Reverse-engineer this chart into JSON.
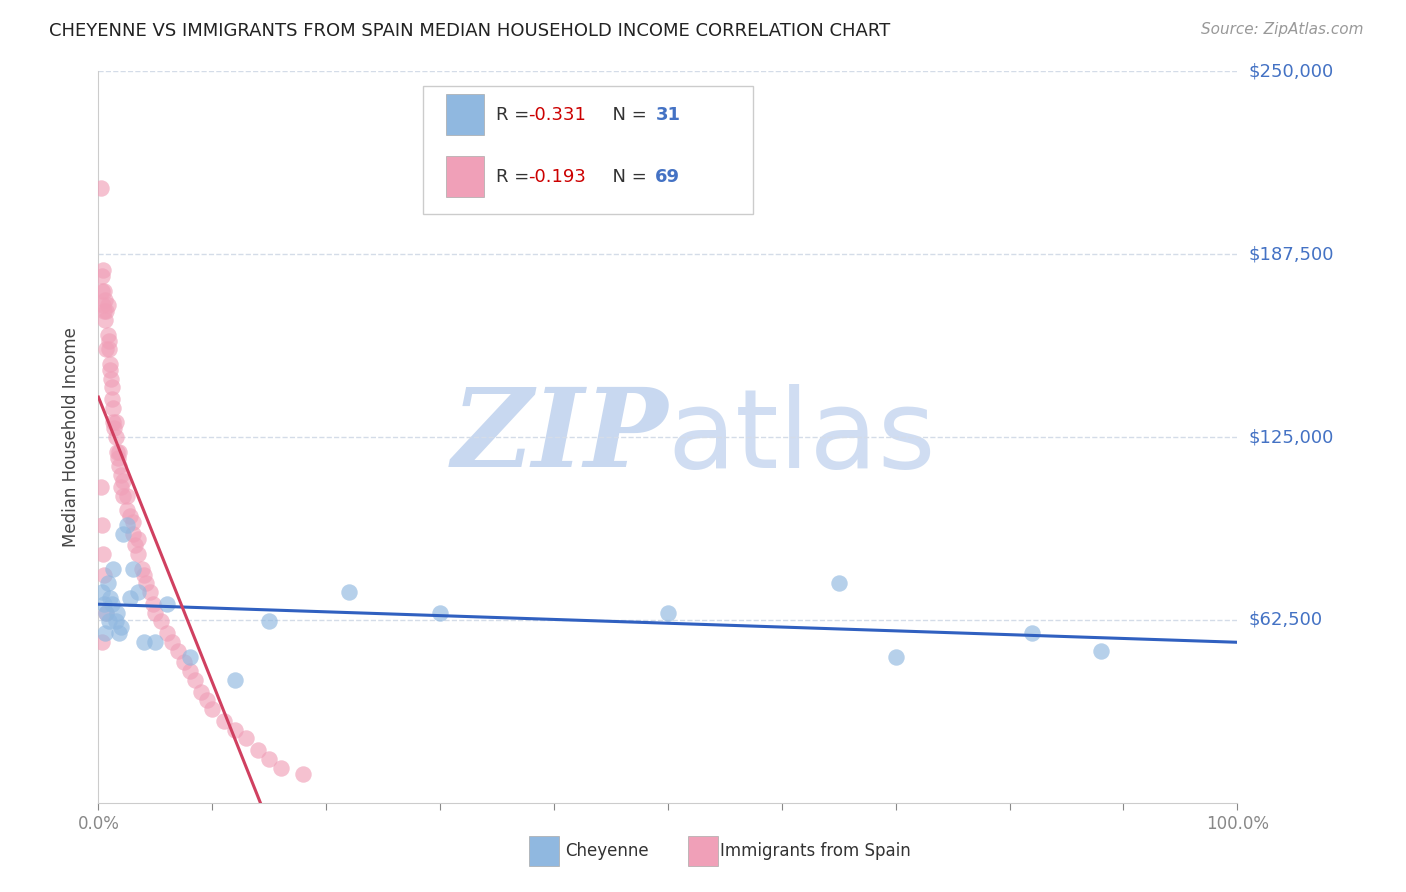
{
  "title": "CHEYENNE VS IMMIGRANTS FROM SPAIN MEDIAN HOUSEHOLD INCOME CORRELATION CHART",
  "source": "Source: ZipAtlas.com",
  "ylabel": "Median Household Income",
  "xlim": [
    0,
    1.0
  ],
  "ylim": [
    0,
    250000
  ],
  "ytick_vals": [
    62500,
    125000,
    187500,
    250000
  ],
  "ytick_labels": [
    "$62,500",
    "$125,000",
    "$187,500",
    "$250,000"
  ],
  "cheyenne_color": "#90b8e0",
  "spain_color": "#f0a0b8",
  "cheyenne_line_color": "#3060c0",
  "spain_line_color": "#d04060",
  "dashed_line_color": "#d0b0c0",
  "watermark_zip_color": "#c8d8f0",
  "watermark_atlas_color": "#c8d8f0",
  "background_color": "#ffffff",
  "grid_color": "#d4dce8",
  "right_label_color": "#4472c4",
  "legend_r_color": "#cc0000",
  "legend_n_color": "#4472c4",
  "legend_text_color": "#333333",
  "cheyenne_x": [
    0.003,
    0.005,
    0.006,
    0.007,
    0.008,
    0.009,
    0.01,
    0.012,
    0.013,
    0.015,
    0.016,
    0.018,
    0.02,
    0.022,
    0.025,
    0.028,
    0.03,
    0.035,
    0.04,
    0.05,
    0.06,
    0.08,
    0.12,
    0.15,
    0.22,
    0.3,
    0.5,
    0.65,
    0.7,
    0.82,
    0.88
  ],
  "cheyenne_y": [
    72000,
    68000,
    58000,
    65000,
    75000,
    62000,
    70000,
    68000,
    80000,
    62000,
    65000,
    58000,
    60000,
    92000,
    95000,
    70000,
    80000,
    72000,
    55000,
    55000,
    68000,
    50000,
    42000,
    62000,
    72000,
    65000,
    65000,
    75000,
    50000,
    58000,
    52000
  ],
  "spain_x": [
    0.002,
    0.003,
    0.003,
    0.004,
    0.004,
    0.005,
    0.005,
    0.006,
    0.006,
    0.007,
    0.007,
    0.008,
    0.008,
    0.009,
    0.009,
    0.01,
    0.01,
    0.011,
    0.012,
    0.012,
    0.013,
    0.013,
    0.014,
    0.015,
    0.015,
    0.016,
    0.017,
    0.018,
    0.018,
    0.02,
    0.02,
    0.022,
    0.022,
    0.025,
    0.025,
    0.028,
    0.03,
    0.03,
    0.032,
    0.035,
    0.035,
    0.038,
    0.04,
    0.042,
    0.045,
    0.048,
    0.05,
    0.055,
    0.06,
    0.065,
    0.07,
    0.075,
    0.08,
    0.085,
    0.09,
    0.095,
    0.1,
    0.11,
    0.12,
    0.13,
    0.14,
    0.15,
    0.16,
    0.18,
    0.002,
    0.003,
    0.004,
    0.005,
    0.007,
    0.003
  ],
  "spain_y": [
    210000,
    180000,
    175000,
    182000,
    170000,
    168000,
    175000,
    172000,
    165000,
    168000,
    155000,
    160000,
    170000,
    155000,
    158000,
    150000,
    148000,
    145000,
    138000,
    142000,
    135000,
    130000,
    128000,
    125000,
    130000,
    120000,
    118000,
    115000,
    120000,
    112000,
    108000,
    105000,
    110000,
    100000,
    105000,
    98000,
    92000,
    96000,
    88000,
    85000,
    90000,
    80000,
    78000,
    75000,
    72000,
    68000,
    65000,
    62000,
    58000,
    55000,
    52000,
    48000,
    45000,
    42000,
    38000,
    35000,
    32000,
    28000,
    25000,
    22000,
    18000,
    15000,
    12000,
    10000,
    108000,
    95000,
    85000,
    78000,
    65000,
    55000
  ]
}
